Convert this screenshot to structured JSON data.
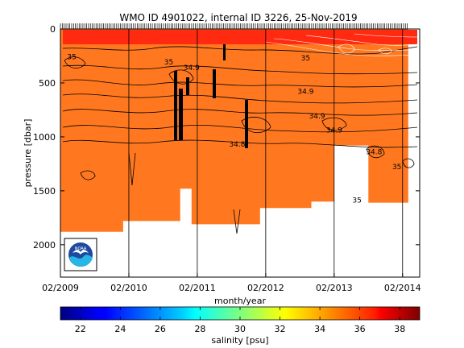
{
  "chart_data": {
    "type": "heatmap",
    "title": "WMO ID 4901022, internal ID 3226, 25-Nov-2019",
    "xlabel": "month/year",
    "ylabel": "pressure [dbar]",
    "x_ticks": [
      "02/2009",
      "02/2010",
      "02/2011",
      "02/2012",
      "02/2013",
      "02/2014"
    ],
    "y_ticks": [
      0,
      500,
      1000,
      1500,
      2000
    ],
    "ylim": [
      2300,
      0
    ],
    "y_reversed": true,
    "grid": "vertical lines at yearly ticks",
    "colorbar": {
      "label": "salinity [psu]",
      "ticks": [
        22,
        24,
        26,
        28,
        30,
        32,
        34,
        36,
        38
      ],
      "range": [
        21,
        39
      ],
      "colormap": "jet"
    },
    "fill_color": "#ff7820",
    "surface_color": "#ff2a10",
    "profile_max_pressure": [
      {
        "date": "2009-02",
        "pressure": 1880
      },
      {
        "date": "2010-01",
        "pressure": 1880
      },
      {
        "date": "2010-01",
        "pressure": 1780
      },
      {
        "date": "2010-11",
        "pressure": 1780
      },
      {
        "date": "2010-11",
        "pressure": 1480
      },
      {
        "date": "2011-01",
        "pressure": 1480
      },
      {
        "date": "2011-01",
        "pressure": 1810
      },
      {
        "date": "2012-01",
        "pressure": 1810
      },
      {
        "date": "2012-01",
        "pressure": 1660
      },
      {
        "date": "2012-10",
        "pressure": 1660
      },
      {
        "date": "2012-10",
        "pressure": 1600
      },
      {
        "date": "2013-02",
        "pressure": 1600
      },
      {
        "date": "2013-02",
        "pressure": 1080
      },
      {
        "date": "2013-08",
        "pressure": 1080
      },
      {
        "date": "2013-08",
        "pressure": 1610
      },
      {
        "date": "2014-03",
        "pressure": 1610
      }
    ],
    "contour_labels": [
      {
        "text": "35",
        "date": "2009-04",
        "pressure": 280
      },
      {
        "text": "35",
        "date": "2010-09",
        "pressure": 330
      },
      {
        "text": "34.9",
        "date": "2011-01",
        "pressure": 380
      },
      {
        "text": "34.9",
        "date": "2012-09",
        "pressure": 600
      },
      {
        "text": "34.9",
        "date": "2012-11",
        "pressure": 830
      },
      {
        "text": "34.9",
        "date": "2013-02",
        "pressure": 960
      },
      {
        "text": "34.8",
        "date": "2011-09",
        "pressure": 1090
      },
      {
        "text": "34.8",
        "date": "2013-09",
        "pressure": 1160
      },
      {
        "text": "35",
        "date": "2014-01",
        "pressure": 1300
      },
      {
        "text": "35",
        "date": "2013-06",
        "pressure": 1610
      },
      {
        "text": "35",
        "date": "2012-09",
        "pressure": 290
      }
    ]
  }
}
